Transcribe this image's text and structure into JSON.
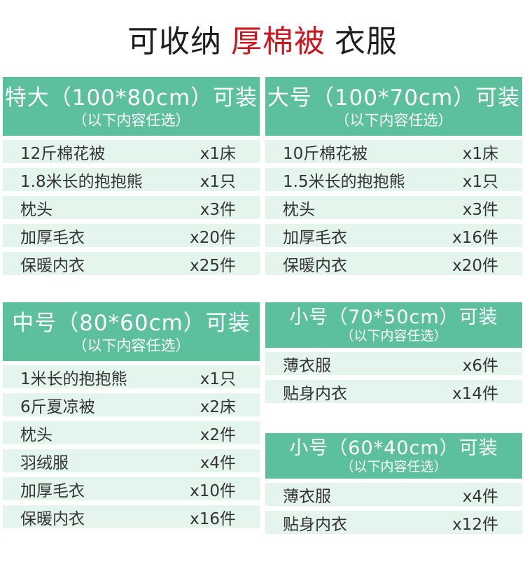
{
  "title": {
    "prefix": "可收纳",
    "highlight": "厚棉被",
    "suffix": "衣服"
  },
  "colors": {
    "header_green": "#5dc09c",
    "row_bg": "#e4f5ee",
    "accent_red": "#c9181f",
    "text_dark": "#1e1e1e",
    "row_text": "#333333",
    "header_text": "#ffffff"
  },
  "chart_data": [
    {
      "type": "table",
      "title": "特大（100*80cm）可装",
      "subtitle": "（以下内容任选）",
      "rows": [
        [
          "12斤棉花被",
          "x1床"
        ],
        [
          "1.8米长的抱抱熊",
          "x1只"
        ],
        [
          "枕头",
          "x3件"
        ],
        [
          "加厚毛衣",
          "x20件"
        ],
        [
          "保暖内衣",
          "x25件"
        ]
      ]
    },
    {
      "type": "table",
      "title": "大号（100*70cm）可装",
      "subtitle": "（以下内容任选）",
      "rows": [
        [
          "10斤棉花被",
          "x1床"
        ],
        [
          "1.5米长的抱抱熊",
          "x1只"
        ],
        [
          "枕头",
          "x3件"
        ],
        [
          "加厚毛衣",
          "x16件"
        ],
        [
          "保暖内衣",
          "x20件"
        ]
      ]
    },
    {
      "type": "table",
      "title": "中号（80*60cm）可装",
      "subtitle": "（以下内容任选）",
      "rows": [
        [
          "1米长的抱抱熊",
          "x1只"
        ],
        [
          "6斤夏凉被",
          "x2床"
        ],
        [
          "枕头",
          "x2件"
        ],
        [
          "羽绒服",
          "x4件"
        ],
        [
          "加厚毛衣",
          "x10件"
        ],
        [
          "保暖内衣",
          "x16件"
        ]
      ]
    },
    {
      "type": "table",
      "title": "小号（70*50cm）可装",
      "subtitle": "（以下内容任选）",
      "rows": [
        [
          "薄衣服",
          "x6件"
        ],
        [
          "贴身内衣",
          "x14件"
        ]
      ]
    },
    {
      "type": "table",
      "title": "小号（60*40cm）可装",
      "subtitle": "（以下内容任选）",
      "rows": [
        [
          "薄衣服",
          "x4件"
        ],
        [
          "贴身内衣",
          "x12件"
        ]
      ]
    }
  ]
}
